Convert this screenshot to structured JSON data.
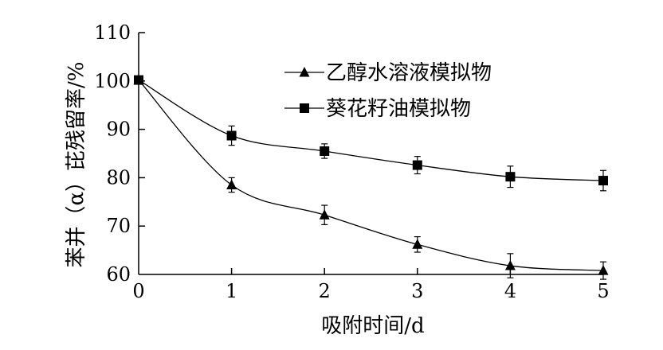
{
  "chart_data": {
    "type": "line",
    "title": "",
    "xlabel": "吸附时间/d",
    "ylabel": "苯并（α）芘残留率/%",
    "xlim": [
      0,
      5
    ],
    "ylim": [
      60,
      110
    ],
    "x_ticks": [
      "0",
      "1",
      "2",
      "3",
      "4",
      "5"
    ],
    "y_ticks": [
      "60",
      "70",
      "80",
      "90",
      "100",
      "110"
    ],
    "grid": false,
    "legend_position": "top-right",
    "x": [
      0,
      1,
      2,
      3,
      4,
      5
    ],
    "series": [
      {
        "name": "乙醇水溶液模拟物",
        "marker": "triangle",
        "values": [
          100.2,
          78.5,
          72.3,
          66.2,
          61.8,
          60.8
        ],
        "errors": [
          0.5,
          1.5,
          2.0,
          1.6,
          2.5,
          1.8
        ]
      },
      {
        "name": "葵花籽油模拟物",
        "marker": "square",
        "values": [
          100.2,
          88.7,
          85.5,
          82.6,
          80.2,
          79.4
        ],
        "errors": [
          0.5,
          2.0,
          1.5,
          1.8,
          2.2,
          2.1
        ]
      }
    ]
  }
}
